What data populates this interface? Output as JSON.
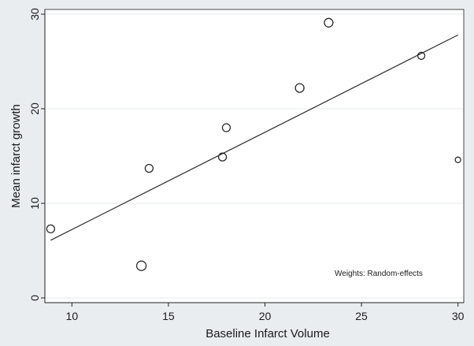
{
  "chart_data": {
    "type": "scatter",
    "title": "",
    "xlabel": "Baseline Infarct Volume",
    "ylabel": "Mean infarct growth",
    "xlim": [
      8.6,
      30.3
    ],
    "ylim": [
      -0.5,
      30.5
    ],
    "x_ticks": [
      10,
      15,
      20,
      25,
      30
    ],
    "y_ticks": [
      0,
      10,
      20,
      30
    ],
    "grid": "horizontal",
    "annotation": "Weights: Random-effects",
    "series": [
      {
        "points": [
          {
            "x": 8.9,
            "y": 7.3,
            "weight": 5
          },
          {
            "x": 13.6,
            "y": 3.4,
            "weight": 6
          },
          {
            "x": 14.0,
            "y": 13.7,
            "weight": 5
          },
          {
            "x": 17.8,
            "y": 14.9,
            "weight": 5
          },
          {
            "x": 18.0,
            "y": 18.0,
            "weight": 5
          },
          {
            "x": 21.8,
            "y": 22.2,
            "weight": 5.5
          },
          {
            "x": 23.3,
            "y": 29.1,
            "weight": 5.5
          },
          {
            "x": 28.1,
            "y": 25.6,
            "weight": 4.5
          },
          {
            "x": 30.0,
            "y": 14.6,
            "weight": 3.5
          }
        ]
      }
    ],
    "fit_line": {
      "x": [
        8.9,
        30.0
      ],
      "y": [
        6.1,
        27.8
      ]
    }
  }
}
